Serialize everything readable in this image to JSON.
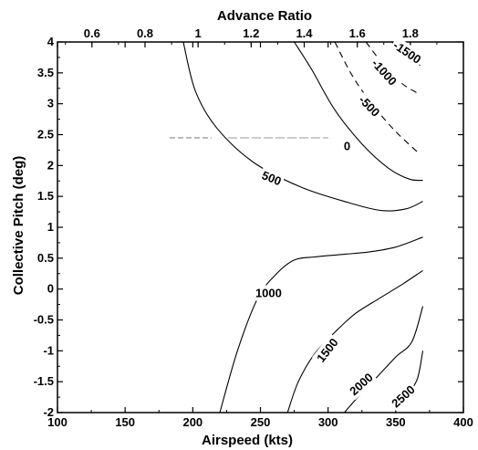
{
  "chart_data": {
    "type": "line",
    "subtype": "contour",
    "title": "",
    "xlabel": "Airspeed (kts)",
    "ylabel": "Collective Pitch (deg)",
    "x2label": "Advance Ratio",
    "xlim": [
      100,
      400
    ],
    "ylim": [
      -2,
      4
    ],
    "x2lim": [
      0.47,
      2.0
    ],
    "x_ticks": [
      100,
      150,
      200,
      250,
      300,
      350,
      400
    ],
    "x_tick_labels": [
      "100",
      "150",
      "200",
      "250",
      "300",
      "350",
      "400"
    ],
    "y_ticks": [
      -2,
      -1.5,
      -1,
      -0.5,
      0,
      0.5,
      1,
      1.5,
      2,
      2.5,
      3,
      3.5,
      4
    ],
    "y_tick_labels": [
      "-2",
      "-1.5",
      "-1",
      "-0.5",
      "0",
      "0.5",
      "1",
      "1.5",
      "2",
      "2.5",
      "3",
      "3.5",
      "4"
    ],
    "x2_ticks": [
      0.6,
      0.8,
      1,
      1.2,
      1.4,
      1.6,
      1.8
    ],
    "x2_tick_labels": [
      "0.6",
      "0.8",
      "1",
      "1.2",
      "1.4",
      "1.6",
      "1.8"
    ],
    "grid": false,
    "series": [
      {
        "level": "-1500",
        "dashed": true,
        "x": [
          347,
          358,
          368
        ],
        "y": [
          4.0,
          3.78,
          3.62
        ]
      },
      {
        "level": "-1000",
        "dashed": true,
        "x": [
          328,
          342,
          355,
          368
        ],
        "y": [
          4.0,
          3.6,
          3.32,
          3.15
        ]
      },
      {
        "level": "-500",
        "dashed": true,
        "x": [
          305,
          318,
          333,
          350,
          368
        ],
        "y": [
          4.0,
          3.45,
          2.98,
          2.55,
          2.18
        ]
      },
      {
        "level": "0",
        "dashed": false,
        "x": [
          275,
          288,
          305,
          325,
          345,
          360,
          370
        ],
        "y": [
          4.0,
          3.55,
          2.9,
          2.35,
          1.95,
          1.78,
          1.76
        ]
      },
      {
        "level": "500",
        "dashed": false,
        "x": [
          193,
          202,
          218,
          245,
          280,
          315,
          340,
          358,
          370
        ],
        "y": [
          4.0,
          3.2,
          2.6,
          2.05,
          1.65,
          1.4,
          1.27,
          1.3,
          1.42
        ]
      },
      {
        "level": "1000",
        "dashed": false,
        "x": [
          220,
          233,
          248,
          262,
          275,
          290,
          310,
          330,
          350,
          370
        ],
        "y": [
          -2.0,
          -1.0,
          -0.15,
          0.25,
          0.47,
          0.52,
          0.56,
          0.6,
          0.68,
          0.84
        ]
      },
      {
        "level": "1500",
        "dashed": false,
        "x": [
          270,
          278,
          290,
          305,
          320,
          338,
          355,
          370
        ],
        "y": [
          -2.0,
          -1.5,
          -1.05,
          -0.7,
          -0.4,
          -0.15,
          0.08,
          0.3
        ]
      },
      {
        "level": "2000",
        "dashed": false,
        "x": [
          312,
          322,
          335,
          350,
          362,
          370
        ],
        "y": [
          -2.0,
          -1.75,
          -1.45,
          -1.1,
          -0.85,
          -0.28
        ]
      },
      {
        "level": "2500",
        "dashed": false,
        "x": [
          350,
          358,
          366,
          370
        ],
        "y": [
          -2.0,
          -1.75,
          -1.45,
          -1.0
        ]
      }
    ],
    "annotations": [
      {
        "text": "-1500",
        "x": 358,
        "y": 3.82,
        "rotate": 34
      },
      {
        "text": "-1000",
        "x": 341,
        "y": 3.5,
        "rotate": 48
      },
      {
        "text": "-500",
        "x": 330,
        "y": 2.95,
        "rotate": 45
      },
      {
        "text": "0",
        "x": 314,
        "y": 2.3,
        "rotate": 0
      },
      {
        "text": "500",
        "x": 258,
        "y": 1.78,
        "rotate": 22
      },
      {
        "text": "1000",
        "x": 256,
        "y": -0.08,
        "rotate": 0
      },
      {
        "text": "1500",
        "x": 300,
        "y": -1.0,
        "rotate": -52
      },
      {
        "text": "2000",
        "x": 325,
        "y": -1.55,
        "rotate": -42
      },
      {
        "text": "2500",
        "x": 356,
        "y": -1.75,
        "rotate": -42
      }
    ]
  }
}
